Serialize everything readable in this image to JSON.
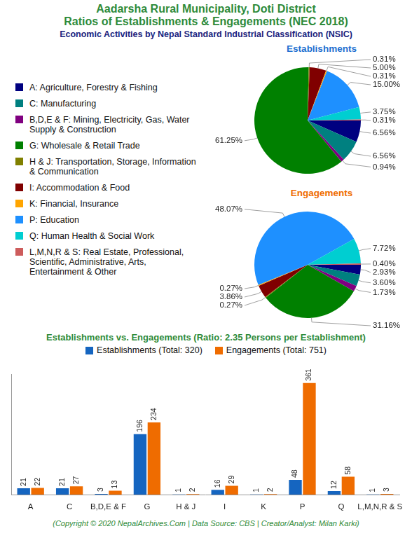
{
  "header": {
    "title": [
      "Aadarsha Rural Municipality, Doti District",
      "Ratios of Establishments & Engagements (NEC 2018)"
    ],
    "subtitle": "Economic Activities by Nepal Standard Industrial Classification (NSIC)"
  },
  "chart_data": [
    {
      "type": "pie",
      "title": "Establishments",
      "categories": [
        "A: Agriculture, Forestry & Fishing",
        "C: Manufacturing",
        "B,D,E & F: Mining, Electricity, Gas, Water Supply & Construction",
        "G: Wholesale & Retail Trade",
        "H & J: Transportation, Storage, Information & Communication",
        "I: Accommodation & Food",
        "K: Financial, Insurance",
        "P: Education",
        "Q: Human Health & Social Work",
        "L,M,N,R & S: Real Estate, Professional, Scientific, Administrative, Arts, Entertainment & Other"
      ],
      "colors": [
        "#000080",
        "#008080",
        "#800080",
        "#008000",
        "#808000",
        "#800000",
        "#ffa500",
        "#1e90ff",
        "#00ced1",
        "#cd5c5c"
      ],
      "values": [
        6.56,
        6.56,
        0.94,
        61.25,
        0.31,
        5,
        0.31,
        15,
        3.75,
        0.31
      ],
      "value_labels": [
        "6.56%",
        "6.56%",
        "0.94%",
        "61.25%",
        "0.31%",
        "5.00%",
        "0.31%",
        "15.00%",
        "3.75%",
        "0.31%"
      ],
      "data_labels": true,
      "legend": "left"
    },
    {
      "type": "pie",
      "title": "Engagements",
      "categories": [
        "A: Agriculture, Forestry & Fishing",
        "C: Manufacturing",
        "B,D,E & F: Mining, Electricity, Gas, Water Supply & Construction",
        "G: Wholesale & Retail Trade",
        "H & J: Transportation, Storage, Information & Communication",
        "I: Accommodation & Food",
        "K: Financial, Insurance",
        "P: Education",
        "Q: Human Health & Social Work",
        "L,M,N,R & S: Real Estate, Professional, Scientific, Administrative, Arts, Entertainment & Other"
      ],
      "colors": [
        "#000080",
        "#008080",
        "#800080",
        "#008000",
        "#808000",
        "#800000",
        "#ffa500",
        "#1e90ff",
        "#00ced1",
        "#cd5c5c"
      ],
      "values": [
        2.93,
        3.6,
        1.73,
        31.16,
        0.27,
        3.86,
        0.27,
        48.07,
        7.72,
        0.4
      ],
      "value_labels": [
        "2.93%",
        "3.60%",
        "1.73%",
        "31.16%",
        "0.27%",
        "3.86%",
        "0.27%",
        "48.07%",
        "7.72%",
        "0.40%"
      ],
      "data_labels": true
    },
    {
      "type": "bar",
      "title": "Establishments vs. Engagements (Ratio: 2.35 Persons per Establishment)",
      "categories": [
        "A",
        "C",
        "B,D,E & F",
        "G",
        "H & J",
        "I",
        "K",
        "P",
        "Q",
        "L,M,N,R & S"
      ],
      "series": [
        {
          "name": "Establishments (Total: 320)",
          "color": "#1565c0",
          "values": [
            21,
            21,
            3,
            196,
            1,
            16,
            1,
            48,
            12,
            1
          ]
        },
        {
          "name": "Engagements (Total: 751)",
          "color": "#ef6c00",
          "values": [
            22,
            27,
            13,
            234,
            2,
            29,
            2,
            361,
            58,
            3
          ]
        }
      ],
      "ylim": [
        0,
        390
      ],
      "grid": false,
      "data_labels": true,
      "tick_labels": "x",
      "legend": "top"
    }
  ],
  "footer": "(Copyright © 2020 NepalArchives.Com | Data Source: CBS | Creator/Analyst: Milan Karki)"
}
